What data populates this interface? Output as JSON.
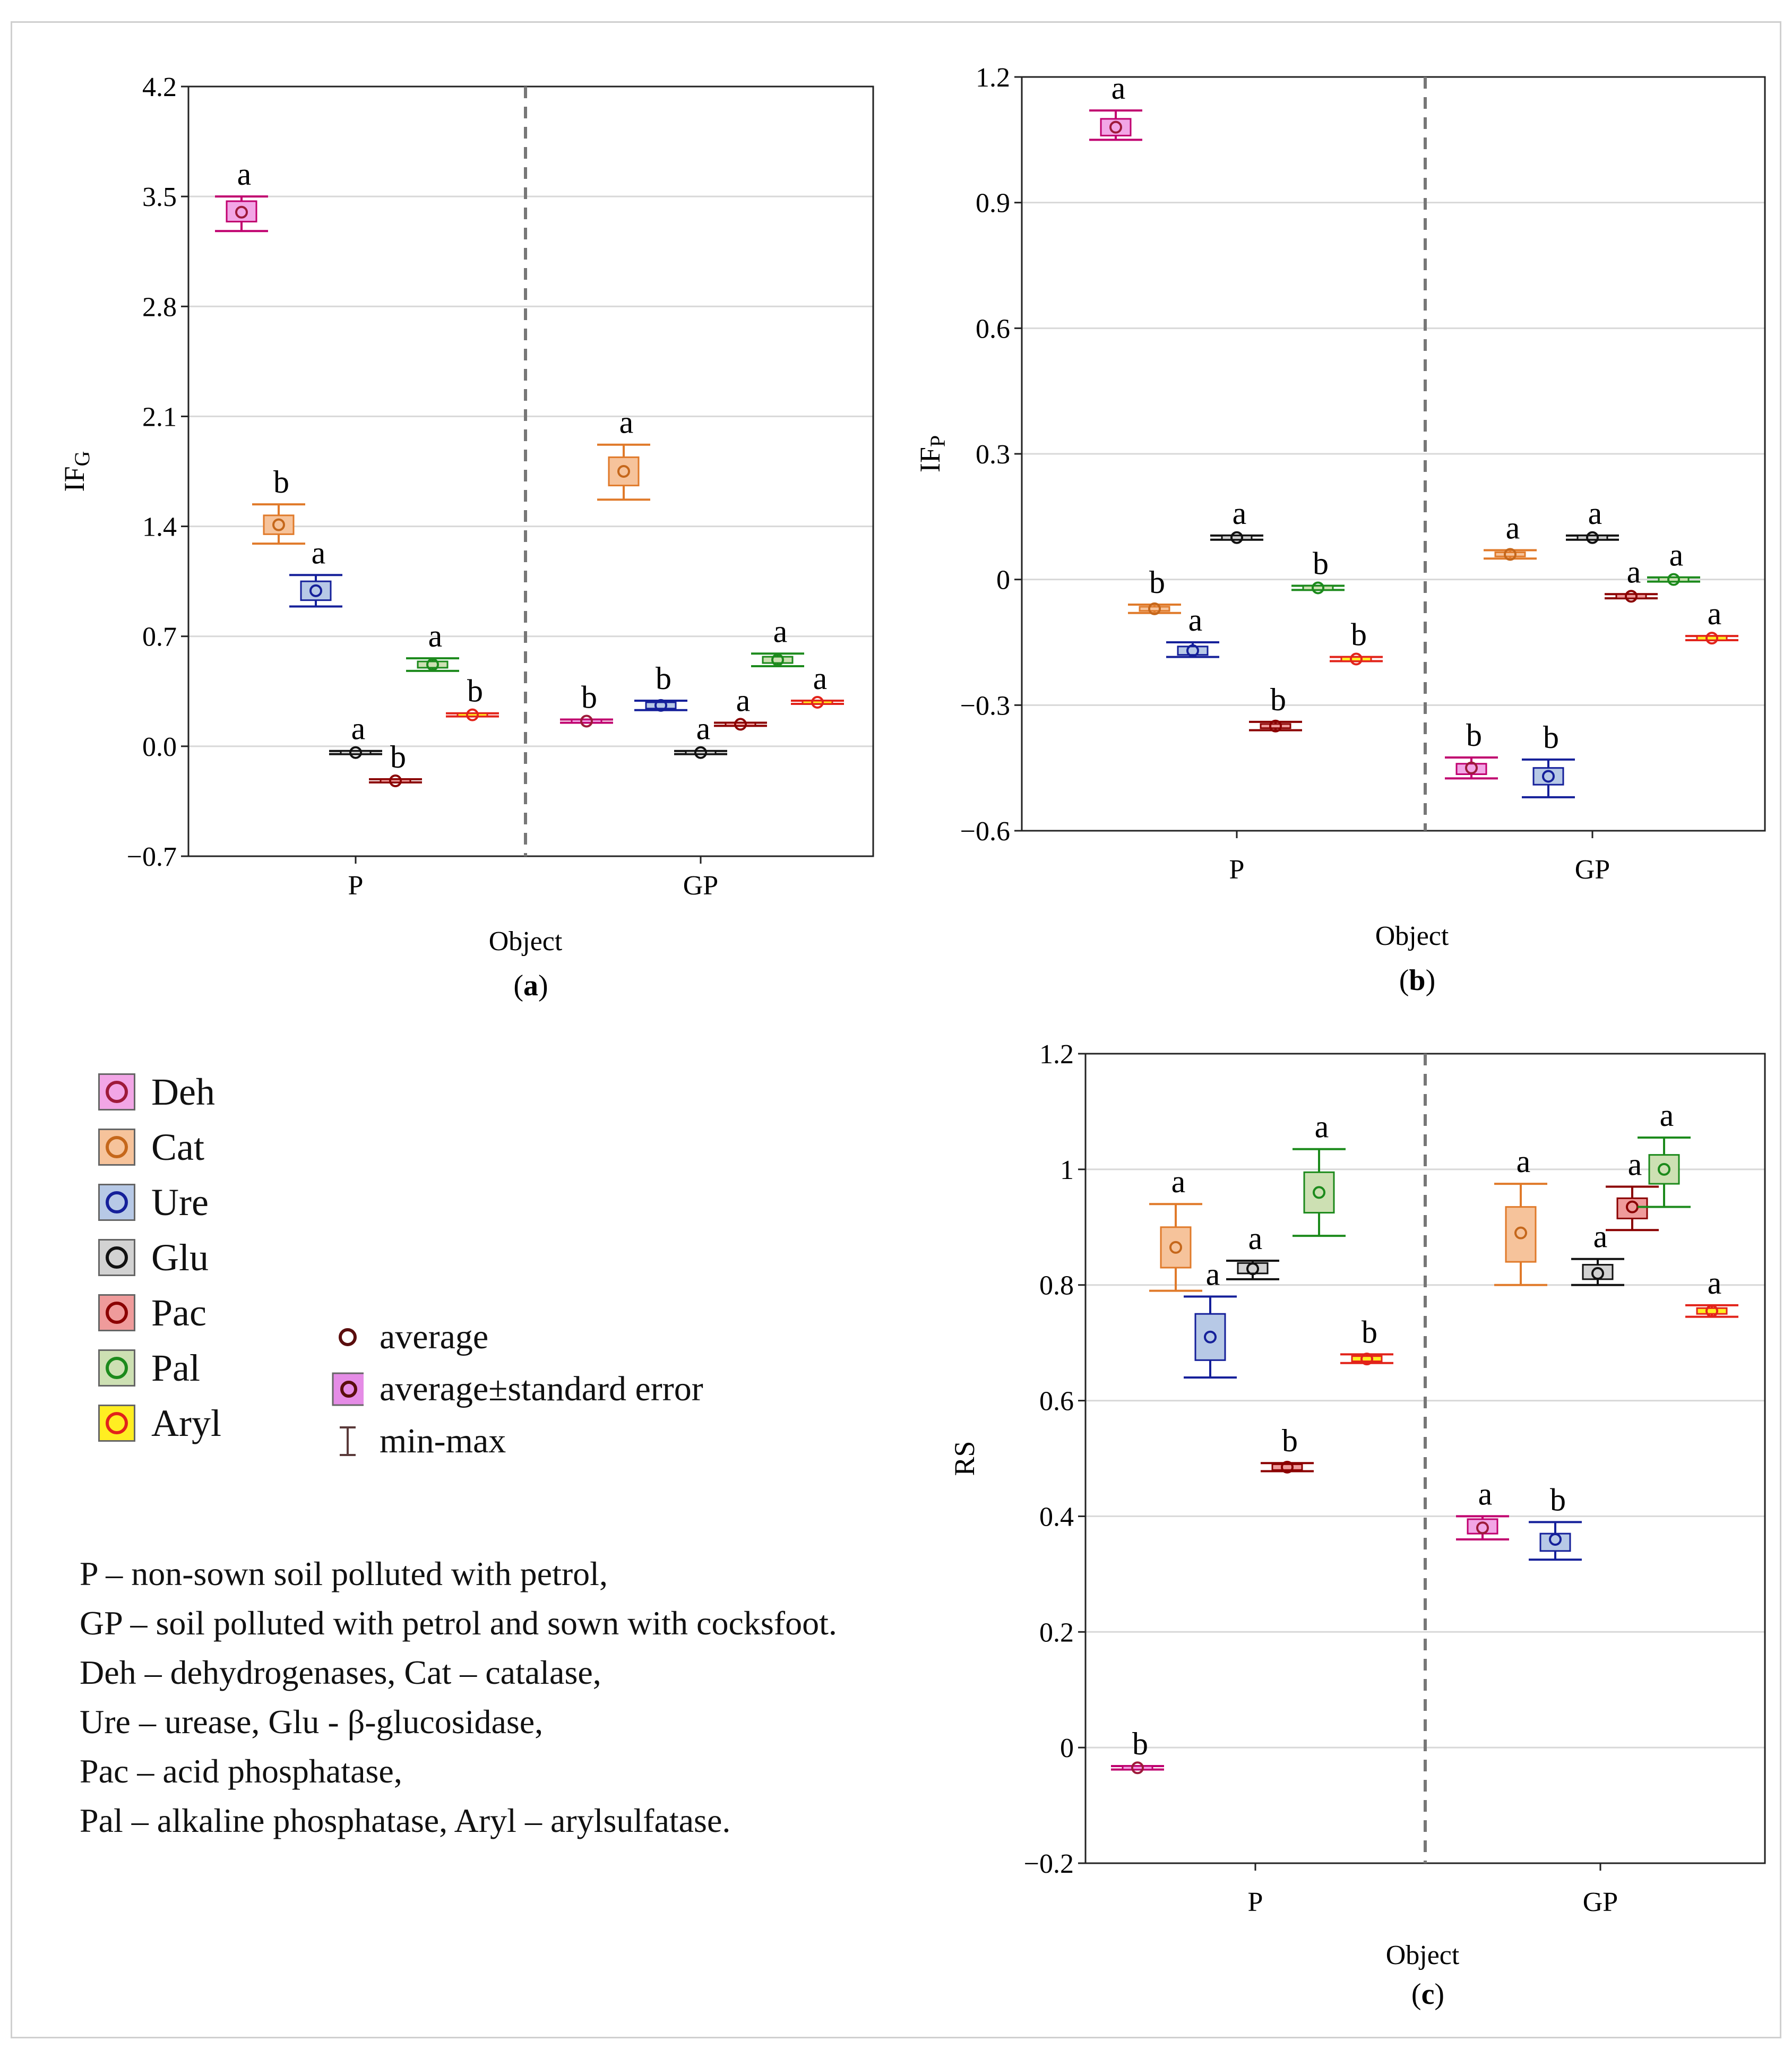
{
  "charts": [
    {
      "id": "a",
      "chart_data": {
        "type": "boxplot",
        "caption": "(a)",
        "xlabel": "Object",
        "ylabel": "IF",
        "ylabel_sub": "G",
        "categories": [
          "P",
          "GP"
        ],
        "ylim": [
          -0.7,
          4.2
        ],
        "yticks": [
          -0.7,
          0.0,
          0.7,
          1.4,
          2.1,
          2.8,
          3.5,
          4.2
        ],
        "ytick_labels": [
          "-0.7",
          "0.0",
          "0.7",
          "1.4",
          "2.1",
          "2.8",
          "3.5",
          "4.2"
        ],
        "series": [
          {
            "name": "Deh",
            "P": {
              "mean": 3.4,
              "se_low": 3.34,
              "se_high": 3.47,
              "min": 3.28,
              "max": 3.5,
              "letter": "a"
            },
            "GP": {
              "mean": 0.16,
              "se_low": 0.15,
              "se_high": 0.17,
              "min": 0.15,
              "max": 0.17,
              "letter": "b"
            }
          },
          {
            "name": "Cat",
            "P": {
              "mean": 1.41,
              "se_low": 1.35,
              "se_high": 1.47,
              "min": 1.29,
              "max": 1.54,
              "letter": "b"
            },
            "GP": {
              "mean": 1.75,
              "se_low": 1.66,
              "se_high": 1.84,
              "min": 1.57,
              "max": 1.92,
              "letter": "a"
            }
          },
          {
            "name": "Ure",
            "P": {
              "mean": 0.99,
              "se_low": 0.93,
              "se_high": 1.05,
              "min": 0.89,
              "max": 1.09,
              "letter": "a"
            },
            "GP": {
              "mean": 0.26,
              "se_low": 0.24,
              "se_high": 0.28,
              "min": 0.23,
              "max": 0.29,
              "letter": "b"
            }
          },
          {
            "name": "Glu",
            "P": {
              "mean": -0.04,
              "se_low": -0.05,
              "se_high": -0.03,
              "min": -0.05,
              "max": -0.03,
              "letter": "a"
            },
            "GP": {
              "mean": -0.04,
              "se_low": -0.05,
              "se_high": -0.03,
              "min": -0.05,
              "max": -0.03,
              "letter": "a"
            }
          },
          {
            "name": "Pac",
            "P": {
              "mean": -0.22,
              "se_low": -0.23,
              "se_high": -0.21,
              "min": -0.23,
              "max": -0.21,
              "letter": "b"
            },
            "GP": {
              "mean": 0.14,
              "se_low": 0.13,
              "se_high": 0.15,
              "min": 0.13,
              "max": 0.15,
              "letter": "a"
            }
          },
          {
            "name": "Pal",
            "P": {
              "mean": 0.52,
              "se_low": 0.5,
              "se_high": 0.54,
              "min": 0.48,
              "max": 0.56,
              "letter": "a"
            },
            "GP": {
              "mean": 0.55,
              "se_low": 0.53,
              "se_high": 0.57,
              "min": 0.51,
              "max": 0.59,
              "letter": "a"
            }
          },
          {
            "name": "Aryl",
            "P": {
              "mean": 0.2,
              "se_low": 0.19,
              "se_high": 0.21,
              "min": 0.19,
              "max": 0.21,
              "letter": "b"
            },
            "GP": {
              "mean": 0.28,
              "se_low": 0.27,
              "se_high": 0.29,
              "min": 0.27,
              "max": 0.29,
              "letter": "a"
            }
          }
        ]
      }
    },
    {
      "id": "b",
      "chart_data": {
        "type": "boxplot",
        "caption": "(b)",
        "xlabel": "Object",
        "ylabel": "IF",
        "ylabel_sub": "P",
        "categories": [
          "P",
          "GP"
        ],
        "ylim": [
          -0.6,
          1.2
        ],
        "yticks": [
          -0.6,
          -0.3,
          0,
          0.3,
          0.6,
          0.9,
          1.2
        ],
        "ytick_labels": [
          "-0.6",
          "-0.3",
          "0",
          "0.3",
          "0.6",
          "0.9",
          "1.2"
        ],
        "series": [
          {
            "name": "Deh",
            "P": {
              "mean": 1.08,
              "se_low": 1.06,
              "se_high": 1.1,
              "min": 1.05,
              "max": 1.12,
              "letter": "a"
            },
            "GP": {
              "mean": -0.45,
              "se_low": -0.465,
              "se_high": -0.44,
              "min": -0.475,
              "max": -0.425,
              "letter": "b"
            }
          },
          {
            "name": "Cat",
            "P": {
              "mean": -0.07,
              "se_low": -0.075,
              "se_high": -0.065,
              "min": -0.08,
              "max": -0.06,
              "letter": "b"
            },
            "GP": {
              "mean": 0.06,
              "se_low": 0.055,
              "se_high": 0.065,
              "min": 0.05,
              "max": 0.07,
              "letter": "a"
            }
          },
          {
            "name": "Ure",
            "P": {
              "mean": -0.17,
              "se_low": -0.18,
              "se_high": -0.16,
              "min": -0.185,
              "max": -0.15,
              "letter": "a"
            },
            "GP": {
              "mean": -0.47,
              "se_low": -0.49,
              "se_high": -0.45,
              "min": -0.52,
              "max": -0.43,
              "letter": "b"
            }
          },
          {
            "name": "Glu",
            "P": {
              "mean": 0.1,
              "se_low": 0.095,
              "se_high": 0.105,
              "min": 0.095,
              "max": 0.105,
              "letter": "a"
            },
            "GP": {
              "mean": 0.1,
              "se_low": 0.095,
              "se_high": 0.105,
              "min": 0.095,
              "max": 0.105,
              "letter": "a"
            }
          },
          {
            "name": "Pac",
            "P": {
              "mean": -0.35,
              "se_low": -0.355,
              "se_high": -0.345,
              "min": -0.36,
              "max": -0.34,
              "letter": "b"
            },
            "GP": {
              "mean": -0.04,
              "se_low": -0.045,
              "se_high": -0.035,
              "min": -0.045,
              "max": -0.035,
              "letter": "a"
            }
          },
          {
            "name": "Pal",
            "P": {
              "mean": -0.02,
              "se_low": -0.025,
              "se_high": -0.015,
              "min": -0.025,
              "max": -0.015,
              "letter": "b"
            },
            "GP": {
              "mean": 0.0,
              "se_low": -0.005,
              "se_high": 0.005,
              "min": -0.005,
              "max": 0.005,
              "letter": "a"
            }
          },
          {
            "name": "Aryl",
            "P": {
              "mean": -0.19,
              "se_low": -0.195,
              "se_high": -0.185,
              "min": -0.195,
              "max": -0.185,
              "letter": "b"
            },
            "GP": {
              "mean": -0.14,
              "se_low": -0.145,
              "se_high": -0.135,
              "min": -0.145,
              "max": -0.135,
              "letter": "a"
            }
          }
        ]
      }
    },
    {
      "id": "c",
      "chart_data": {
        "type": "boxplot",
        "caption": "(c)",
        "xlabel": "Object",
        "ylabel": "RS",
        "ylabel_sub": "",
        "categories": [
          "P",
          "GP"
        ],
        "ylim": [
          -0.2,
          1.2
        ],
        "yticks": [
          -0.2,
          0,
          0.2,
          0.4,
          0.6,
          0.8,
          1,
          1.2
        ],
        "ytick_labels": [
          "-0.2",
          "0",
          "0.2",
          "0.4",
          "0.6",
          "0.8",
          "1",
          "1.2"
        ],
        "series": [
          {
            "name": "Deh",
            "P": {
              "mean": -0.035,
              "se_low": -0.038,
              "se_high": -0.032,
              "min": -0.038,
              "max": -0.032,
              "letter": "b"
            },
            "GP": {
              "mean": 0.38,
              "se_low": 0.37,
              "se_high": 0.395,
              "min": 0.36,
              "max": 0.4,
              "letter": "a"
            }
          },
          {
            "name": "Cat",
            "P": {
              "mean": 0.865,
              "se_low": 0.83,
              "se_high": 0.9,
              "min": 0.79,
              "max": 0.94,
              "letter": "a"
            },
            "GP": {
              "mean": 0.89,
              "se_low": 0.84,
              "se_high": 0.935,
              "min": 0.8,
              "max": 0.975,
              "letter": "a"
            }
          },
          {
            "name": "Ure",
            "P": {
              "mean": 0.71,
              "se_low": 0.67,
              "se_high": 0.75,
              "min": 0.64,
              "max": 0.78,
              "letter": "a"
            },
            "GP": {
              "mean": 0.36,
              "se_low": 0.34,
              "se_high": 0.37,
              "min": 0.325,
              "max": 0.39,
              "letter": "b"
            }
          },
          {
            "name": "Glu",
            "P": {
              "mean": 0.828,
              "se_low": 0.82,
              "se_high": 0.838,
              "min": 0.81,
              "max": 0.842,
              "letter": "a"
            },
            "GP": {
              "mean": 0.82,
              "se_low": 0.81,
              "se_high": 0.835,
              "min": 0.8,
              "max": 0.845,
              "letter": "a"
            }
          },
          {
            "name": "Pac",
            "P": {
              "mean": 0.485,
              "se_low": 0.48,
              "se_high": 0.49,
              "min": 0.478,
              "max": 0.492,
              "letter": "b"
            },
            "GP": {
              "mean": 0.935,
              "se_low": 0.915,
              "se_high": 0.95,
              "min": 0.895,
              "max": 0.97,
              "letter": "a"
            }
          },
          {
            "name": "Pal",
            "P": {
              "mean": 0.96,
              "se_low": 0.925,
              "se_high": 0.995,
              "min": 0.885,
              "max": 1.035,
              "letter": "a"
            },
            "GP": {
              "mean": 1.0,
              "se_low": 0.975,
              "se_high": 1.025,
              "min": 0.935,
              "max": 1.055,
              "letter": "a"
            }
          },
          {
            "name": "Aryl",
            "P": {
              "mean": 0.672,
              "se_low": 0.668,
              "se_high": 0.677,
              "min": 0.665,
              "max": 0.68,
              "letter": "b"
            },
            "GP": {
              "mean": 0.755,
              "se_low": 0.75,
              "se_high": 0.76,
              "min": 0.745,
              "max": 0.765,
              "letter": "a"
            }
          }
        ]
      }
    }
  ],
  "enzyme_colors": {
    "Deh": {
      "fill": "#f2a6e6",
      "line": "#c0006f",
      "dot": "#9e1a3a"
    },
    "Cat": {
      "fill": "#f6c39b",
      "line": "#e07a2a",
      "dot": "#c5671b"
    },
    "Ure": {
      "fill": "#b7c9e6",
      "line": "#15209a",
      "dot": "#15209a"
    },
    "Glu": {
      "fill": "#d2d2d2",
      "line": "#111111",
      "dot": "#111111"
    },
    "Pac": {
      "fill": "#ef9b9b",
      "line": "#8b0000",
      "dot": "#8b0000"
    },
    "Pal": {
      "fill": "#cde0b3",
      "line": "#1c8a1c",
      "dot": "#1c8a1c"
    },
    "Aryl": {
      "fill": "#ffee22",
      "line": "#e2231a",
      "dot": "#e2231a"
    }
  },
  "legend": {
    "items": [
      "Deh",
      "Cat",
      "Ure",
      "Glu",
      "Pac",
      "Pal",
      "Aryl"
    ],
    "average": "average",
    "average_se": "average±standard error",
    "minmax": "min-max"
  },
  "notes": {
    "line1": "P – non-sown soil polluted with petrol,",
    "line2": "GP – soil polluted with petrol and sown with cocksfoot.",
    "line3": "Deh – dehydrogenases, Cat – catalase,",
    "line4": "Ure – urease, Glu - β-glucosidase,",
    "line5": "Pac – acid phosphatase,",
    "line6": "Pal – alkaline phosphatase, Aryl – arylsulfatase."
  }
}
